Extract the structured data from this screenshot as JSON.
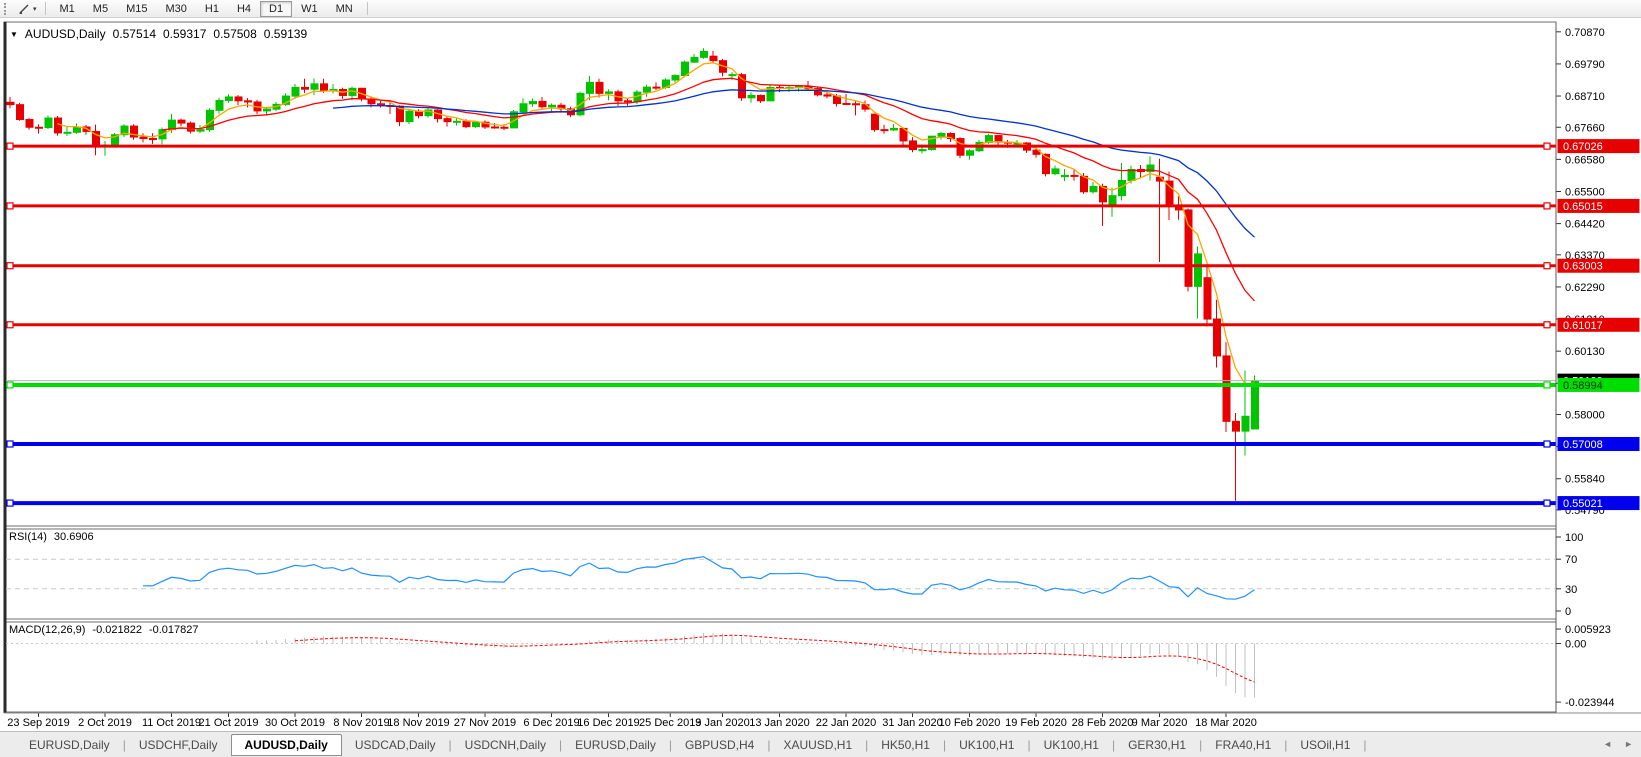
{
  "icons": {
    "symbol_dropdown": "▼",
    "toolbar_caret": "▾",
    "tab_scroll_left": "◄",
    "tab_scroll_right": "►"
  },
  "toolbar": {
    "timeframes": [
      "M1",
      "M5",
      "M15",
      "M30",
      "H1",
      "H4",
      "D1",
      "W1",
      "MN"
    ],
    "active_timeframe": "D1"
  },
  "chart_data": {
    "type": "candlestick",
    "symbol": "AUDUSD",
    "period": "Daily",
    "title": {
      "symbol_with_period": "AUDUSD,Daily",
      "open": "0.57514",
      "high": "0.59317",
      "low": "0.57508",
      "close": "0.59139"
    },
    "colors": {
      "up": "#00C400",
      "down": "#E80000"
    },
    "candles": [
      [
        "18 Sep 2019",
        0.685,
        0.6868,
        0.683,
        0.6842
      ],
      [
        "19 Sep 2019",
        0.6842,
        0.6848,
        0.6788,
        0.6792
      ],
      [
        "20 Sep 2019",
        0.6792,
        0.6798,
        0.6758,
        0.6766
      ],
      [
        "23 Sep 2019",
        0.6766,
        0.6776,
        0.6745,
        0.6765
      ],
      [
        "24 Sep 2019",
        0.6765,
        0.6806,
        0.676,
        0.6797
      ],
      [
        "25 Sep 2019",
        0.6797,
        0.6804,
        0.6738,
        0.6747
      ],
      [
        "26 Sep 2019",
        0.6747,
        0.6768,
        0.6737,
        0.6749
      ],
      [
        "27 Sep 2019",
        0.6749,
        0.6779,
        0.6744,
        0.6767
      ],
      [
        "30 Sep 2019",
        0.6767,
        0.6774,
        0.6741,
        0.6752
      ],
      [
        "1 Oct 2019",
        0.6752,
        0.6775,
        0.6672,
        0.6701
      ],
      [
        "2 Oct 2019",
        0.6701,
        0.672,
        0.667,
        0.6706
      ],
      [
        "3 Oct 2019",
        0.6706,
        0.6747,
        0.67,
        0.6741
      ],
      [
        "4 Oct 2019",
        0.6741,
        0.6776,
        0.6733,
        0.677
      ],
      [
        "7 Oct 2019",
        0.677,
        0.6776,
        0.6724,
        0.6733
      ],
      [
        "8 Oct 2019",
        0.6733,
        0.6746,
        0.6715,
        0.6728
      ],
      [
        "9 Oct 2019",
        0.6728,
        0.6746,
        0.671,
        0.6727
      ],
      [
        "10 Oct 2019",
        0.6727,
        0.6765,
        0.6709,
        0.6758
      ],
      [
        "11 Oct 2019",
        0.6758,
        0.6811,
        0.6747,
        0.679
      ],
      [
        "14 Oct 2019",
        0.679,
        0.6795,
        0.677,
        0.678
      ],
      [
        "15 Oct 2019",
        0.678,
        0.6785,
        0.6745,
        0.6753
      ],
      [
        "16 Oct 2019",
        0.6753,
        0.6774,
        0.6746,
        0.6758
      ],
      [
        "17 Oct 2019",
        0.6758,
        0.683,
        0.6751,
        0.6823
      ],
      [
        "18 Oct 2019",
        0.6823,
        0.6865,
        0.6812,
        0.6856
      ],
      [
        "21 Oct 2019",
        0.6856,
        0.6877,
        0.6848,
        0.6868
      ],
      [
        "22 Oct 2019",
        0.6868,
        0.6874,
        0.6841,
        0.6855
      ],
      [
        "23 Oct 2019",
        0.6855,
        0.6864,
        0.6833,
        0.6851
      ],
      [
        "24 Oct 2019",
        0.6851,
        0.6858,
        0.681,
        0.6821
      ],
      [
        "25 Oct 2019",
        0.6821,
        0.6835,
        0.6805,
        0.6827
      ],
      [
        "28 Oct 2019",
        0.6827,
        0.6851,
        0.682,
        0.6843
      ],
      [
        "29 Oct 2019",
        0.6843,
        0.688,
        0.6838,
        0.6871
      ],
      [
        "30 Oct 2019",
        0.6871,
        0.6912,
        0.6862,
        0.69
      ],
      [
        "31 Oct 2019",
        0.69,
        0.6929,
        0.6881,
        0.6894
      ],
      [
        "1 Nov 2019",
        0.6894,
        0.693,
        0.6874,
        0.6912
      ],
      [
        "4 Nov 2019",
        0.6912,
        0.6929,
        0.6882,
        0.6888
      ],
      [
        "5 Nov 2019",
        0.6888,
        0.6911,
        0.688,
        0.6893
      ],
      [
        "6 Nov 2019",
        0.6893,
        0.6899,
        0.6862,
        0.6873
      ],
      [
        "7 Nov 2019",
        0.6873,
        0.6903,
        0.6856,
        0.6897
      ],
      [
        "8 Nov 2019",
        0.6897,
        0.6899,
        0.6853,
        0.6861
      ],
      [
        "11 Nov 2019",
        0.6861,
        0.687,
        0.6833,
        0.6845
      ],
      [
        "12 Nov 2019",
        0.6845,
        0.6855,
        0.6832,
        0.6839
      ],
      [
        "13 Nov 2019",
        0.6839,
        0.6851,
        0.6811,
        0.6837
      ],
      [
        "14 Nov 2019",
        0.6837,
        0.684,
        0.677,
        0.6785
      ],
      [
        "15 Nov 2019",
        0.6785,
        0.6825,
        0.6777,
        0.682
      ],
      [
        "18 Nov 2019",
        0.682,
        0.6827,
        0.6796,
        0.6805
      ],
      [
        "19 Nov 2019",
        0.6805,
        0.6833,
        0.6799,
        0.6824
      ],
      [
        "20 Nov 2019",
        0.6824,
        0.6827,
        0.6782,
        0.6795
      ],
      [
        "21 Nov 2019",
        0.6795,
        0.6803,
        0.6768,
        0.6785
      ],
      [
        "22 Nov 2019",
        0.6785,
        0.6795,
        0.6772,
        0.6786
      ],
      [
        "25 Nov 2019",
        0.6786,
        0.6793,
        0.6763,
        0.6768
      ],
      [
        "26 Nov 2019",
        0.6768,
        0.6788,
        0.6764,
        0.6783
      ],
      [
        "27 Nov 2019",
        0.6783,
        0.6789,
        0.676,
        0.6767
      ],
      [
        "28 Nov 2019",
        0.6767,
        0.678,
        0.6761,
        0.6766
      ],
      [
        "29 Nov 2019",
        0.6766,
        0.6776,
        0.6756,
        0.6764
      ],
      [
        "2 Dec 2019",
        0.6764,
        0.6824,
        0.6762,
        0.6818
      ],
      [
        "3 Dec 2019",
        0.6818,
        0.6863,
        0.681,
        0.6845
      ],
      [
        "4 Dec 2019",
        0.6845,
        0.6863,
        0.6835,
        0.6853
      ],
      [
        "5 Dec 2019",
        0.6853,
        0.6868,
        0.6829,
        0.6835
      ],
      [
        "6 Dec 2019",
        0.6835,
        0.6846,
        0.6819,
        0.684
      ],
      [
        "9 Dec 2019",
        0.684,
        0.6848,
        0.6818,
        0.6828
      ],
      [
        "10 Dec 2019",
        0.6828,
        0.6835,
        0.68,
        0.6808
      ],
      [
        "11 Dec 2019",
        0.6808,
        0.6886,
        0.6803,
        0.688
      ],
      [
        "12 Dec 2019",
        0.688,
        0.6939,
        0.6857,
        0.6917
      ],
      [
        "13 Dec 2019",
        0.6917,
        0.6929,
        0.6866,
        0.688
      ],
      [
        "16 Dec 2019",
        0.688,
        0.6894,
        0.6857,
        0.6885
      ],
      [
        "17 Dec 2019",
        0.6885,
        0.6892,
        0.6838,
        0.6855
      ],
      [
        "18 Dec 2019",
        0.6855,
        0.6863,
        0.6838,
        0.6852
      ],
      [
        "19 Dec 2019",
        0.6852,
        0.6891,
        0.6844,
        0.6884
      ],
      [
        "20 Dec 2019",
        0.6884,
        0.6909,
        0.6868,
        0.6901
      ],
      [
        "23 Dec 2019",
        0.6901,
        0.6917,
        0.6891,
        0.69
      ],
      [
        "24 Dec 2019",
        0.69,
        0.6931,
        0.6895,
        0.6925
      ],
      [
        "26 Dec 2019",
        0.6925,
        0.6944,
        0.6917,
        0.694
      ],
      [
        "27 Dec 2019",
        0.694,
        0.699,
        0.6934,
        0.6985
      ],
      [
        "30 Dec 2019",
        0.6985,
        0.7012,
        0.6982,
        0.7001
      ],
      [
        "31 Dec 2019",
        0.7001,
        0.7032,
        0.6996,
        0.7021
      ],
      [
        "2 Jan 2020",
        0.7005,
        0.7023,
        0.6982,
        0.699
      ],
      [
        "3 Jan 2020",
        0.699,
        0.6996,
        0.6937,
        0.6951
      ],
      [
        "6 Jan 2020",
        0.6941,
        0.6951,
        0.6925,
        0.6943
      ],
      [
        "7 Jan 2020",
        0.6943,
        0.6949,
        0.6855,
        0.6865
      ],
      [
        "8 Jan 2020",
        0.6865,
        0.6884,
        0.6849,
        0.6873
      ],
      [
        "9 Jan 2020",
        0.6873,
        0.6876,
        0.6848,
        0.6855
      ],
      [
        "10 Jan 2020",
        0.6855,
        0.6911,
        0.6853,
        0.69
      ],
      [
        "13 Jan 2020",
        0.69,
        0.691,
        0.6884,
        0.6899
      ],
      [
        "14 Jan 2020",
        0.6899,
        0.6906,
        0.6884,
        0.69
      ],
      [
        "15 Jan 2020",
        0.69,
        0.6909,
        0.6886,
        0.6903
      ],
      [
        "16 Jan 2020",
        0.6903,
        0.6922,
        0.689,
        0.6896
      ],
      [
        "17 Jan 2020",
        0.6896,
        0.69,
        0.687,
        0.6875
      ],
      [
        "20 Jan 2020",
        0.6875,
        0.6884,
        0.6863,
        0.6871
      ],
      [
        "21 Jan 2020",
        0.6871,
        0.6878,
        0.6836,
        0.6846
      ],
      [
        "22 Jan 2020",
        0.6846,
        0.6878,
        0.6842,
        0.6845
      ],
      [
        "23 Jan 2020",
        0.6845,
        0.6853,
        0.6806,
        0.6842
      ],
      [
        "24 Jan 2020",
        0.6842,
        0.6856,
        0.6818,
        0.6827
      ],
      [
        "27 Jan 2020",
        0.681,
        0.6812,
        0.6751,
        0.6758
      ],
      [
        "28 Jan 2020",
        0.6758,
        0.6774,
        0.6744,
        0.6757
      ],
      [
        "29 Jan 2020",
        0.6757,
        0.6777,
        0.6753,
        0.6762
      ],
      [
        "30 Jan 2020",
        0.6762,
        0.6766,
        0.6699,
        0.672
      ],
      [
        "31 Jan 2020",
        0.672,
        0.6733,
        0.6682,
        0.6691
      ],
      [
        "3 Feb 2020",
        0.6687,
        0.6708,
        0.6678,
        0.6691
      ],
      [
        "4 Feb 2020",
        0.6691,
        0.6738,
        0.6687,
        0.6736
      ],
      [
        "5 Feb 2020",
        0.6736,
        0.675,
        0.6725,
        0.6745
      ],
      [
        "6 Feb 2020",
        0.6745,
        0.6749,
        0.6716,
        0.6728
      ],
      [
        "7 Feb 2020",
        0.6728,
        0.6733,
        0.6662,
        0.6672
      ],
      [
        "10 Feb 2020",
        0.6672,
        0.6692,
        0.6657,
        0.6687
      ],
      [
        "11 Feb 2020",
        0.6687,
        0.6723,
        0.6683,
        0.6715
      ],
      [
        "12 Feb 2020",
        0.6715,
        0.6744,
        0.671,
        0.6738
      ],
      [
        "13 Feb 2020",
        0.6738,
        0.674,
        0.6705,
        0.6716
      ],
      [
        "14 Feb 2020",
        0.6716,
        0.6723,
        0.6697,
        0.6713
      ],
      [
        "17 Feb 2020",
        0.6713,
        0.6723,
        0.6703,
        0.6713
      ],
      [
        "18 Feb 2020",
        0.6713,
        0.6716,
        0.668,
        0.6689
      ],
      [
        "19 Feb 2020",
        0.6689,
        0.6693,
        0.6664,
        0.6675
      ],
      [
        "20 Feb 2020",
        0.6675,
        0.6678,
        0.6601,
        0.661
      ],
      [
        "21 Feb 2020",
        0.661,
        0.6637,
        0.6604,
        0.6626
      ],
      [
        "24 Feb 2020",
        0.66,
        0.6625,
        0.6585,
        0.6604
      ],
      [
        "25 Feb 2020",
        0.6604,
        0.6627,
        0.6586,
        0.6601
      ],
      [
        "26 Feb 2020",
        0.6601,
        0.6612,
        0.6542,
        0.6549
      ],
      [
        "27 Feb 2020",
        0.6549,
        0.6582,
        0.6543,
        0.6567
      ],
      [
        "28 Feb 2020",
        0.6567,
        0.6576,
        0.6434,
        0.6515
      ],
      [
        "2 Mar 2020",
        0.6505,
        0.6563,
        0.6465,
        0.6536
      ],
      [
        "3 Mar 2020",
        0.6536,
        0.6646,
        0.652,
        0.6587
      ],
      [
        "4 Mar 2020",
        0.6587,
        0.6637,
        0.6577,
        0.6624
      ],
      [
        "5 Mar 2020",
        0.6624,
        0.6639,
        0.6596,
        0.6617
      ],
      [
        "6 Mar 2020",
        0.6617,
        0.6668,
        0.6587,
        0.6639
      ],
      [
        "9 Mar 2020",
        0.6598,
        0.666,
        0.6313,
        0.6585
      ],
      [
        "10 Mar 2020",
        0.6585,
        0.6617,
        0.6454,
        0.6503
      ],
      [
        "11 Mar 2020",
        0.6503,
        0.6534,
        0.6455,
        0.6488
      ],
      [
        "12 Mar 2020",
        0.6488,
        0.6493,
        0.6214,
        0.6231
      ],
      [
        "13 Mar 2020",
        0.6231,
        0.6365,
        0.6123,
        0.634
      ],
      [
        "16 Mar 2020",
        0.626,
        0.6302,
        0.6096,
        0.6121
      ],
      [
        "17 Mar 2020",
        0.6121,
        0.6186,
        0.5958,
        0.5997
      ],
      [
        "18 Mar 2020",
        0.5997,
        0.6043,
        0.5741,
        0.5777
      ],
      [
        "19 Mar 2020",
        0.5777,
        0.5805,
        0.551,
        0.5744
      ],
      [
        "20 Mar 2020",
        0.5744,
        0.5948,
        0.5662,
        0.5794
      ],
      [
        "23 Mar 2020",
        0.57514,
        0.59317,
        0.57508,
        0.59139
      ]
    ],
    "moving_averages": [
      {
        "name": "ma-fast",
        "period": 5,
        "method": "ema",
        "color": "#FFA500"
      },
      {
        "name": "ma-medium",
        "period": 16,
        "method": "ema",
        "color": "#FF0000"
      },
      {
        "name": "ma-slow",
        "period": 34,
        "method": "ema",
        "color": "#0033CC"
      }
    ],
    "horizontal_lines": [
      {
        "price": 0.67026,
        "label": "0.67026",
        "color": "#E60000",
        "text_color": "#FFFFFF",
        "width": 3
      },
      {
        "price": 0.65015,
        "label": "0.65015",
        "color": "#E60000",
        "text_color": "#FFFFFF",
        "width": 3
      },
      {
        "price": 0.63003,
        "label": "0.63003",
        "color": "#E60000",
        "text_color": "#FFFFFF",
        "width": 3
      },
      {
        "price": 0.61017,
        "label": "0.61017",
        "color": "#E60000",
        "text_color": "#FFFFFF",
        "width": 3
      },
      {
        "price": 0.58994,
        "label": "0.58994",
        "color": "#00DD00",
        "text_color": "#003300",
        "width": 4
      },
      {
        "price": 0.57008,
        "label": "0.57008",
        "color": "#0000EE",
        "text_color": "#FFFFFF",
        "width": 4
      },
      {
        "price": 0.55021,
        "label": "0.55021",
        "color": "#0000EE",
        "text_color": "#FFFFFF",
        "width": 4
      }
    ],
    "bid": {
      "price": 0.59139,
      "label": "0.59139",
      "line_color": "#B4B4B4",
      "box_color": "#000000",
      "text_color": "#FFFFFF"
    },
    "price_axis_ticks": [
      0.7087,
      0.6979,
      0.6871,
      0.6766,
      0.6658,
      0.655,
      0.6442,
      0.6337,
      0.6229,
      0.6121,
      0.6013,
      0.5905,
      0.58,
      0.5692,
      0.5584,
      0.5479
    ],
    "rsi": {
      "label": "RSI(14)",
      "period": 14,
      "value_label": "30.6906",
      "color": "#1E90FF",
      "levels": [
        70,
        30
      ],
      "ticks": [
        100,
        70,
        30,
        0
      ]
    },
    "macd": {
      "label": "MACD(12,26,9)",
      "fast": 12,
      "slow": 26,
      "signal": 9,
      "value_label": "-0.021822",
      "signal_label": "-0.017827",
      "histogram_color": "#C0C0C0",
      "signal_color": "#FF0000",
      "ticks": [
        {
          "value": 0.005923,
          "label": "0.005923"
        },
        {
          "value": 0.0,
          "label": "0.00"
        },
        {
          "value": -0.023944,
          "label": "-0.023944"
        }
      ]
    },
    "date_labels": [
      "23 Sep 2019",
      "2 Oct 2019",
      "11 Oct 2019",
      "21 Oct 2019",
      "30 Oct 2019",
      "8 Nov 2019",
      "18 Nov 2019",
      "27 Nov 2019",
      "6 Dec 2019",
      "16 Dec 2019",
      "25 Dec 2019",
      "3 Jan 2020",
      "13 Jan 2020",
      "22 Jan 2020",
      "31 Jan 2020",
      "10 Feb 2020",
      "19 Feb 2020",
      "28 Feb 2020",
      "9 Mar 2020",
      "18 Mar 2020"
    ]
  },
  "tabs": {
    "items": [
      "EURUSD,Daily",
      "USDCHF,Daily",
      "AUDUSD,Daily",
      "USDCAD,Daily",
      "USDCNH,Daily",
      "EURUSD,Daily",
      "GBPUSD,H4",
      "XAUUSD,H1",
      "HK50,H1",
      "UK100,H1",
      "UK100,H1",
      "GER30,H1",
      "FRA40,H1",
      "USOil,H1"
    ],
    "active_index": 2
  }
}
